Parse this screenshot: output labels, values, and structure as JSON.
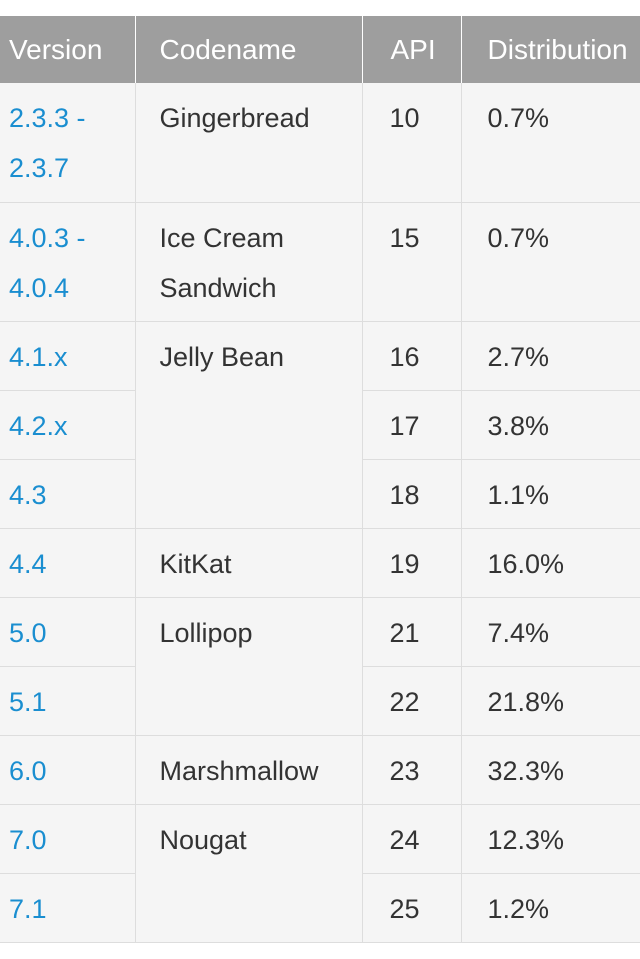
{
  "headers": {
    "version": "Version",
    "codename": "Codename",
    "api": "API",
    "distribution": "Distribution"
  },
  "colors": {
    "header_bg": "#9e9e9e",
    "link": "#1a8ed0",
    "cell_bg": "#f5f5f5",
    "text": "#333333"
  },
  "rows": [
    {
      "version_line1": "2.3.3 -",
      "version_line2": "2.3.7",
      "codename_line1": "Gingerbread",
      "codename_line2": "",
      "api": "10",
      "distribution": "0.7%"
    },
    {
      "version_line1": "4.0.3 -",
      "version_line2": "4.0.4",
      "codename_line1": "Ice Cream",
      "codename_line2": "Sandwich",
      "api": "15",
      "distribution": "0.7%"
    },
    {
      "version": "4.1.x",
      "codename": "Jelly Bean",
      "api": "16",
      "distribution": "2.7%"
    },
    {
      "version": "4.2.x",
      "api": "17",
      "distribution": "3.8%"
    },
    {
      "version": "4.3",
      "api": "18",
      "distribution": "1.1%"
    },
    {
      "version": "4.4",
      "codename": "KitKat",
      "api": "19",
      "distribution": "16.0%"
    },
    {
      "version": "5.0",
      "codename": "Lollipop",
      "api": "21",
      "distribution": "7.4%"
    },
    {
      "version": "5.1",
      "api": "22",
      "distribution": "21.8%"
    },
    {
      "version": "6.0",
      "codename": "Marshmallow",
      "api": "23",
      "distribution": "32.3%"
    },
    {
      "version": "7.0",
      "codename": "Nougat",
      "api": "24",
      "distribution": "12.3%"
    },
    {
      "version": "7.1",
      "api": "25",
      "distribution": "1.2%"
    }
  ]
}
